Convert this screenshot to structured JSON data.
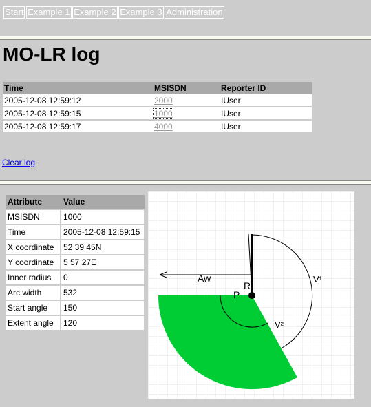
{
  "nav": {
    "items": [
      {
        "label": "Start"
      },
      {
        "label": "Example 1"
      },
      {
        "label": "Example 2"
      },
      {
        "label": "Example 3"
      },
      {
        "label": "Administration"
      }
    ]
  },
  "page": {
    "title": "MO-LR log"
  },
  "log_table": {
    "headers": {
      "time": "Time",
      "msisdn": "MSISDN",
      "reporter": "Reporter ID"
    },
    "rows": [
      {
        "time": "2005-12-08 12:59:12",
        "msisdn": "2000",
        "reporter": "IUser"
      },
      {
        "time": "2005-12-08 12:59:15",
        "msisdn": "1000",
        "reporter": "IUser"
      },
      {
        "time": "2005-12-08 12:59:17",
        "msisdn": "4000",
        "reporter": "IUser"
      }
    ]
  },
  "actions": {
    "clear_log": "Clear log"
  },
  "attributes": {
    "headers": {
      "attribute": "Attribute",
      "value": "Value"
    },
    "rows": [
      {
        "attribute": "MSISDN",
        "value": "1000"
      },
      {
        "attribute": "Time",
        "value": "2005-12-08 12:59:15"
      },
      {
        "attribute": "X coordinate",
        "value": "52 39 45N"
      },
      {
        "attribute": "Y coordinate",
        "value": "5 57 27E"
      },
      {
        "attribute": "Inner radius",
        "value": "0"
      },
      {
        "attribute": "Arc width",
        "value": "532"
      },
      {
        "attribute": "Start angle",
        "value": "150"
      },
      {
        "attribute": "Extent angle",
        "value": "120"
      }
    ]
  },
  "diagram": {
    "labels": {
      "aw": "Aw",
      "p": "P",
      "ri": "Ri",
      "v1": "V¹",
      "v2": "V²"
    },
    "colors": {
      "sector": "#00cc33",
      "grid": "#e6e6e6",
      "background": "#ffffff"
    }
  }
}
